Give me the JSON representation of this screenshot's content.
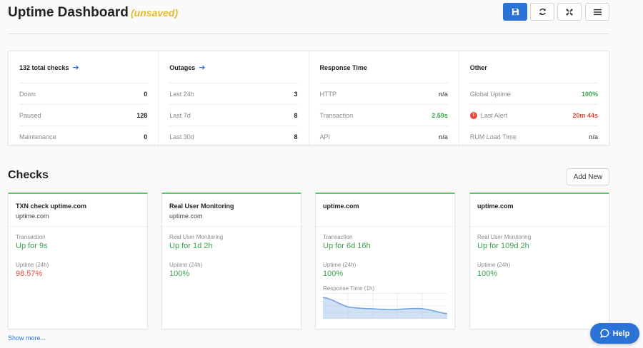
{
  "header": {
    "title": "Uptime Dashboard",
    "status": "(unsaved)"
  },
  "toolbar": [
    {
      "icon": "save-icon",
      "primary": true
    },
    {
      "icon": "refresh-icon",
      "primary": false
    },
    {
      "icon": "fullscreen-icon",
      "primary": false
    },
    {
      "icon": "menu-icon",
      "primary": false
    }
  ],
  "stats": {
    "checks": {
      "title": "132 total checks",
      "rows": [
        {
          "label": "Down",
          "value": "0"
        },
        {
          "label": "Paused",
          "value": "128"
        },
        {
          "label": "Maintenance",
          "value": "0"
        }
      ]
    },
    "outages": {
      "title": "Outages",
      "rows": [
        {
          "label": "Last 24h",
          "value": "3"
        },
        {
          "label": "Last 7d",
          "value": "8"
        },
        {
          "label": "Last 30d",
          "value": "8"
        }
      ]
    },
    "response": {
      "title": "Response Time",
      "rows": [
        {
          "label": "HTTP",
          "value": "n/a"
        },
        {
          "label": "Transaction",
          "value": "2.59s"
        },
        {
          "label": "API",
          "value": "n/a"
        }
      ]
    },
    "other": {
      "title": "Other",
      "rows": [
        {
          "label": "Global Uptime",
          "value": "100%"
        },
        {
          "label": "Last Alert",
          "value": "20m 44s"
        },
        {
          "label": "RUM Load Time",
          "value": "n/a"
        }
      ]
    }
  },
  "checks_section": {
    "title": "Checks",
    "add_label": "Add New",
    "show_more": "Show more..."
  },
  "cards": [
    {
      "title": "TXN check uptime.com",
      "subtitle": "uptime.com",
      "type": "Transaction",
      "status": "Up for 9s",
      "uptime_label": "Uptime (24h)",
      "uptime": "98.57%"
    },
    {
      "title": "Real User Monitoring",
      "subtitle": "uptime.com",
      "type": "Real User Monitoring",
      "status": "Up for 1d 2h",
      "uptime_label": "Uptime (24h)",
      "uptime": "100%"
    },
    {
      "title": "uptime.com",
      "subtitle": "",
      "type": "Transaction",
      "status": "Up for 6d 16h",
      "uptime_label": "Uptime (24h)",
      "uptime": "100%",
      "chart_label": "Response Time (1h)"
    },
    {
      "title": "uptime.com",
      "subtitle": "",
      "type": "Real User Monitoring",
      "status": "Up for 109d 2h",
      "uptime_label": "Uptime (24h)",
      "uptime": "100%"
    }
  ],
  "help": {
    "label": "Help"
  },
  "colors": {
    "accent": "#2b73d6",
    "success": "#3aa14a",
    "danger": "#e44b3c",
    "warning": "#e6b82e"
  }
}
